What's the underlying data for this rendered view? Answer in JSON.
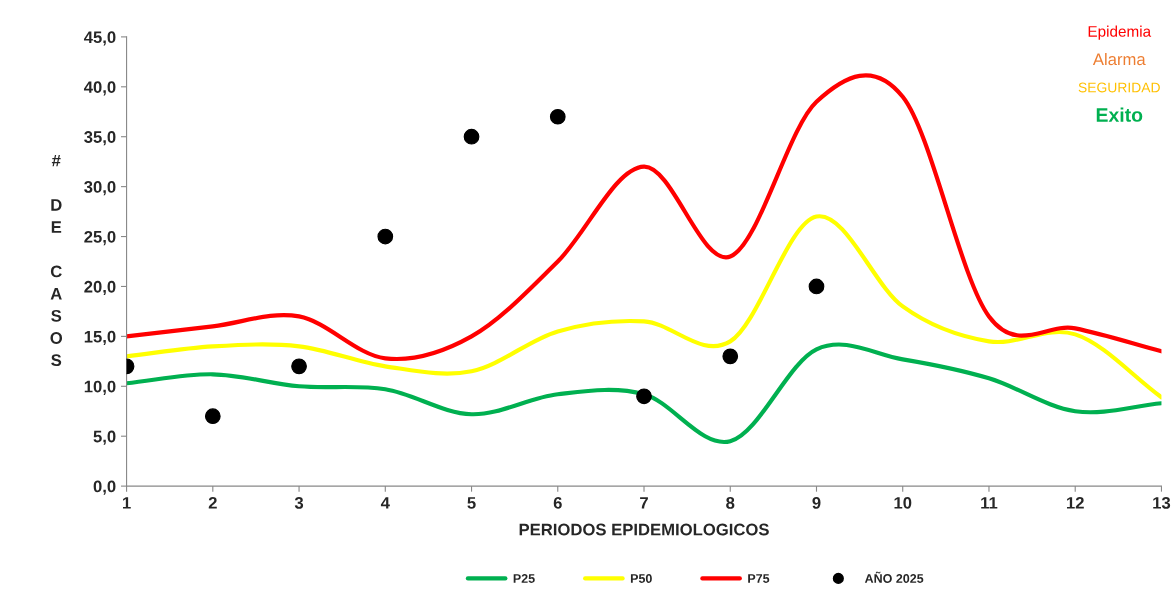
{
  "chart_data": {
    "type": "line",
    "xlabel": "PERIODOS EPIDEMIOLOGICOS",
    "ylabel": "# DE CASOS",
    "x": [
      1,
      2,
      3,
      4,
      5,
      6,
      7,
      8,
      9,
      10,
      11,
      12,
      13
    ],
    "xlim": [
      1,
      13
    ],
    "xticks": [
      1,
      2,
      3,
      4,
      5,
      6,
      7,
      8,
      9,
      10,
      11,
      12,
      13
    ],
    "ylim": [
      0,
      45
    ],
    "yticks": [
      {
        "value": 0,
        "label": "0,0"
      },
      {
        "value": 5,
        "label": "5,0"
      },
      {
        "value": 10,
        "label": "10,0"
      },
      {
        "value": 15,
        "label": "15,0"
      },
      {
        "value": 20,
        "label": "20,0"
      },
      {
        "value": 25,
        "label": "25,0"
      },
      {
        "value": 30,
        "label": "30,0"
      },
      {
        "value": 35,
        "label": "35,0"
      },
      {
        "value": 40,
        "label": "40,0"
      },
      {
        "value": 45,
        "label": "45,0"
      }
    ],
    "series": [
      {
        "name": "P25",
        "color": "#00b050",
        "values": [
          10.3,
          11.2,
          10.0,
          9.7,
          7.2,
          9.2,
          9.2,
          4.5,
          13.7,
          12.7,
          10.8,
          7.5,
          8.3
        ]
      },
      {
        "name": "P50",
        "color": "#ffff00",
        "values": [
          13.0,
          14.0,
          14.0,
          12.0,
          11.5,
          15.5,
          16.5,
          14.5,
          27.0,
          18.0,
          14.5,
          15.2,
          8.9
        ]
      },
      {
        "name": "P75",
        "color": "#ff0000",
        "values": [
          15.0,
          16.0,
          17.0,
          12.8,
          15.0,
          22.5,
          32.0,
          23.0,
          38.5,
          39.0,
          17.0,
          15.8,
          13.5
        ]
      },
      {
        "name": "AÑO 2025",
        "type": "scatter",
        "marker": "circle",
        "color": "#000000",
        "x": [
          1,
          2,
          3,
          4,
          5,
          6,
          7,
          8,
          9
        ],
        "values": [
          12,
          7,
          12,
          25,
          35,
          37,
          9,
          13,
          20
        ]
      }
    ],
    "annotations": [
      "Epidemia",
      "Alarma",
      "SEGURIDAD",
      "Exito"
    ],
    "grid": false,
    "legend": "bottom",
    "line_style": "solid"
  }
}
